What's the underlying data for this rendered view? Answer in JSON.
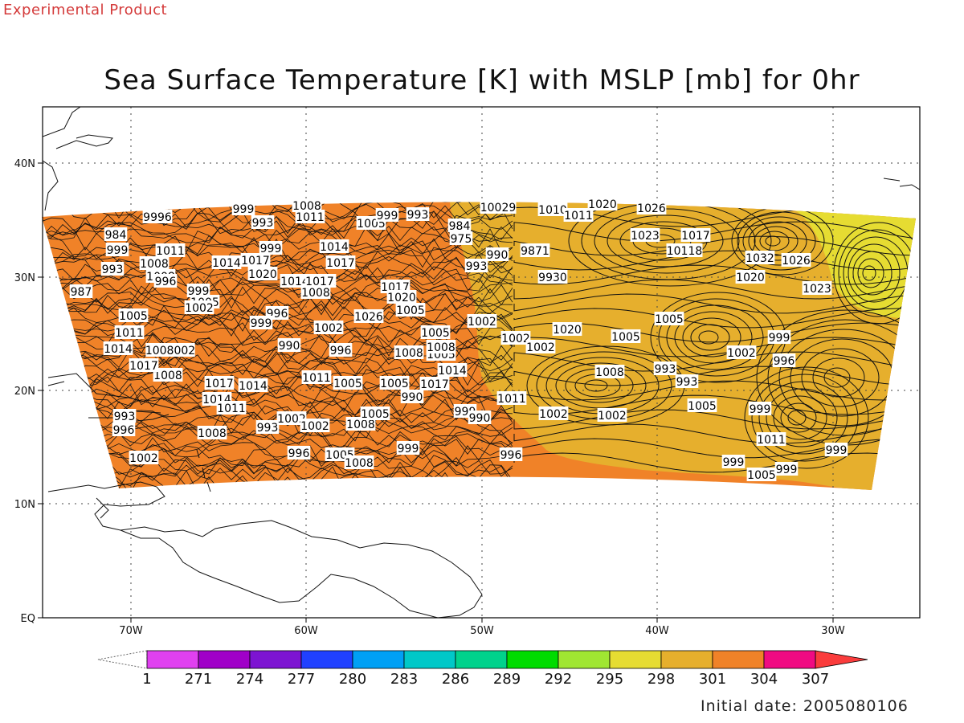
{
  "header": {
    "experimental_label": "Experimental Product",
    "title": "Sea Surface Temperature [K] with MSLP [mb] for 0hr"
  },
  "map": {
    "lat_ticks": [
      "EQ",
      "10N",
      "20N",
      "30N",
      "40N"
    ],
    "lon_ticks": [
      "70W",
      "60W",
      "50W",
      "40W",
      "30W"
    ],
    "extent": {
      "lon_min": -75,
      "lon_max": -25,
      "lat_min": 0,
      "lat_max": 45
    }
  },
  "colorbar": {
    "labels": [
      "1",
      "271",
      "274",
      "277",
      "280",
      "283",
      "286",
      "289",
      "292",
      "295",
      "298",
      "301",
      "304",
      "307"
    ],
    "colors": [
      "#e040f0",
      "#a000c8",
      "#7d14d2",
      "#2040ff",
      "#00a0f5",
      "#00c8c8",
      "#00d28c",
      "#00dc00",
      "#a0e632",
      "#e6dc32",
      "#e6af2d",
      "#f08228",
      "#f00a82",
      "#fa3c3c"
    ]
  },
  "sst_regions": [
    {
      "name": "very-warm",
      "color": "#f08228"
    },
    {
      "name": "warm",
      "color": "#e6af2d"
    },
    {
      "name": "cool",
      "color": "#e6dc32"
    }
  ],
  "pressure_labels": [
    "999",
    "1008",
    "1011",
    "9996",
    "993",
    "1005",
    "999",
    "993",
    "10029",
    "1010",
    "1011",
    "1020",
    "1026",
    "984",
    "1011",
    "999",
    "1014",
    "984",
    "975",
    "1023",
    "1017",
    "999",
    "1008",
    "1014",
    "1017",
    "1017",
    "990",
    "9871",
    "10118",
    "1032",
    "1026",
    "993",
    "1008",
    "1020",
    "1014",
    "1011",
    "1017",
    "996",
    "993",
    "1020",
    "1023",
    "987",
    "999",
    "1008",
    "1017",
    "1020",
    "9930",
    "1005",
    "1005",
    "996",
    "1026",
    "1005",
    "999",
    "1002",
    "1005",
    "1011",
    "1002",
    "990",
    "996",
    "1008",
    "1005",
    "1002",
    "1005",
    "1008",
    "1002",
    "1020",
    "1005",
    "999",
    "1008002",
    "1014",
    "1008",
    "1017",
    "1017",
    "1014",
    "1011",
    "1005",
    "1017",
    "1005",
    "1014",
    "1008",
    "1002",
    "996",
    "993",
    "993",
    "993",
    "990",
    "1014",
    "1011",
    "1005",
    "999",
    "990",
    "1011",
    "1002",
    "999",
    "996",
    "993",
    "1008",
    "1002",
    "1002",
    "1008",
    "1005",
    "1002",
    "1011",
    "999",
    "996",
    "999",
    "1005",
    "1008",
    "999",
    "1002",
    "996",
    "1005",
    "999",
    "1005",
    "1002"
  ],
  "footer": {
    "initial_date": "Initial date: 2005080106"
  }
}
